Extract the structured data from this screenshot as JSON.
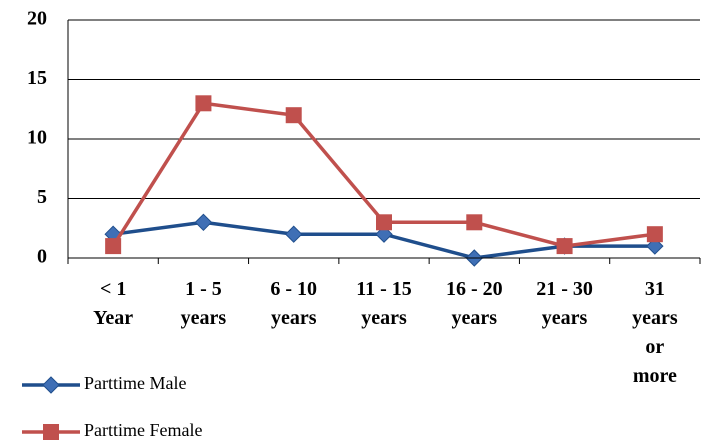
{
  "chart_data": {
    "type": "line",
    "categories": [
      "< 1 Year",
      "1 - 5 years",
      "6 - 10 years",
      "11 - 15 years",
      "16 - 20 years",
      "21 - 30 years",
      "31 years or more"
    ],
    "series": [
      {
        "name": "Parttime Male",
        "color": "#1f4e8c",
        "marker": "diamond",
        "values": [
          2,
          3,
          2,
          2,
          0,
          1,
          1
        ]
      },
      {
        "name": "Parttime Female",
        "color": "#c0504d",
        "marker": "square",
        "values": [
          1,
          13,
          12,
          3,
          3,
          1,
          2
        ]
      }
    ],
    "ylim": [
      0,
      20
    ],
    "yticks": [
      0,
      5,
      10,
      15,
      20
    ],
    "grid": true
  }
}
